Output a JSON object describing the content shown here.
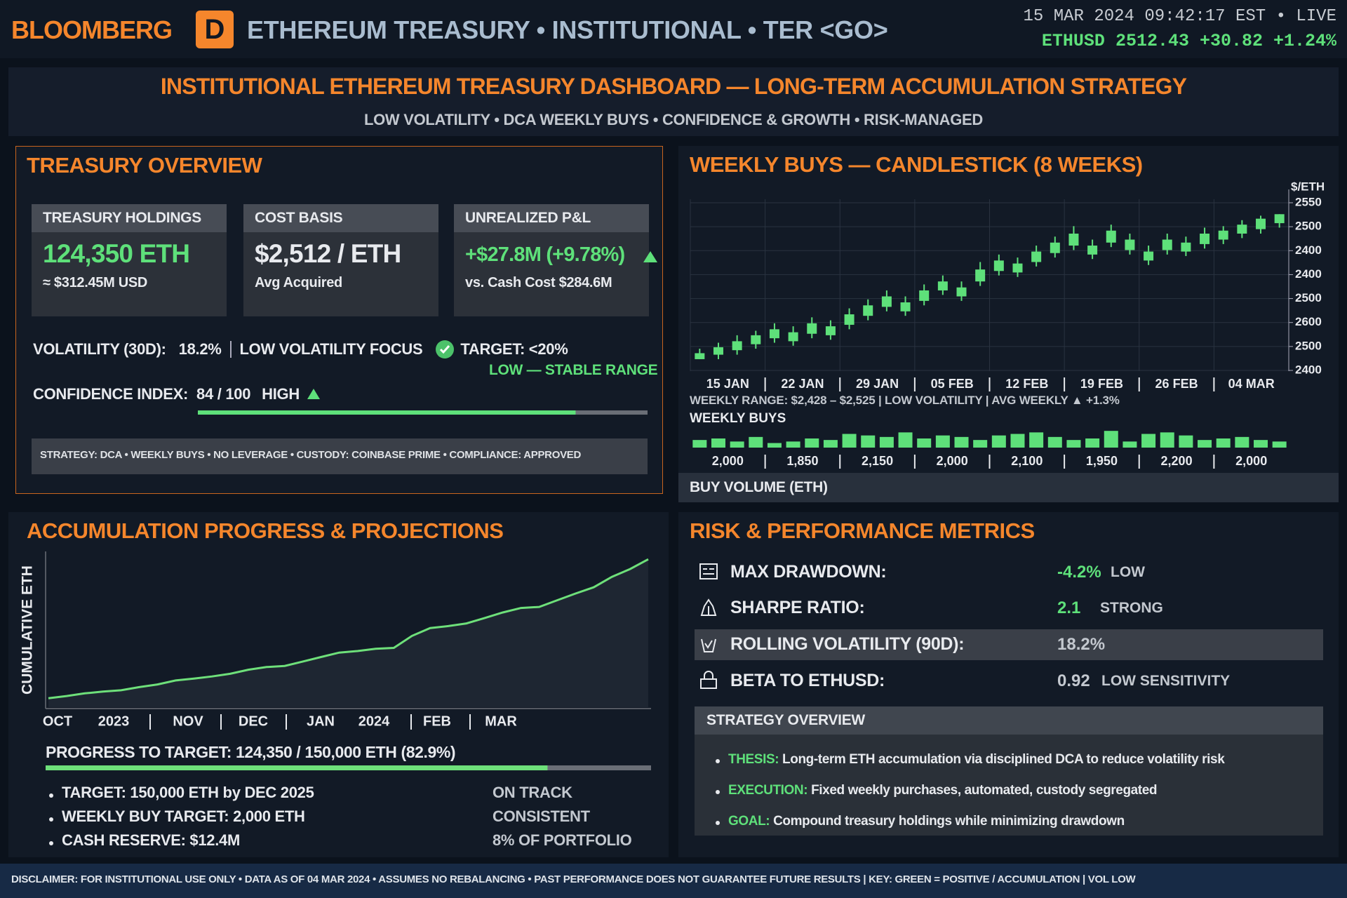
{
  "header": {
    "brand": "BLOOMBERG",
    "logo": "D",
    "title": "ETHEREUM TREASURY • INSTITUTIONAL • TER <GO>",
    "timestamp": "15 MAR 2024 09:42:17 EST • LIVE",
    "ticker": "ETHUSD 2512.43 +30.82 +1.24%"
  },
  "banner": {
    "title": "INSTITUTIONAL ETHEREUM TREASURY DASHBOARD — LONG-TERM ACCUMULATION STRATEGY",
    "subtitle": "LOW VOLATILITY • DCA WEEKLY BUYS • CONFIDENCE & GROWTH • RISK-MANAGED"
  },
  "overview": {
    "title": "TREASURY OVERVIEW",
    "cards": [
      {
        "label": "TREASURY HOLDINGS",
        "value": "124,350 ETH",
        "sub": "≈ $312.45M USD"
      },
      {
        "label": "COST BASIS",
        "value": "$2,512 / ETH",
        "sub": "Avg Acquired"
      },
      {
        "label": "UNREALIZED P&L",
        "value": "+$27.8M (+9.78%)",
        "sub": "vs. Cash Cost $284.6M"
      }
    ],
    "volatility_label": "VOLATILITY (30D):",
    "volatility": "18.2%",
    "focus": "LOW VOLATILITY FOCUS",
    "target": "TARGET: <20%",
    "range_note": "LOW — STABLE RANGE",
    "confidence_label": "CONFIDENCE INDEX:",
    "confidence": {
      "value": 84,
      "max": 100,
      "label": "84 / 100"
    },
    "confidence_rating": "HIGH",
    "bar_color": "#5ee07a",
    "strategy_line": "STRATEGY: DCA • WEEKLY BUYS • NO LEVERAGE • CUSTODY: COINBASE PRIME • COMPLIANCE: APPROVED"
  },
  "weekly": {
    "title": "WEEKLY BUYS — CANDLESTICK (8 WEEKS)",
    "chart_data": {
      "type": "candlestick",
      "unit_label": "$/ETH",
      "color": "#5ee07a",
      "y_axis_labels": [
        "2550",
        "2500",
        "2400",
        "2400",
        "2500",
        "2600",
        "2500",
        "2400"
      ],
      "ylim": [
        2420,
        2535
      ],
      "categories": [
        "15 JAN",
        "22 JAN",
        "29 JAN",
        "05 FEB",
        "12 FEB",
        "19 FEB",
        "26 FEB",
        "04 MAR"
      ],
      "open": [
        2428,
        2431,
        2434,
        2438,
        2442,
        2440,
        2445,
        2444,
        2451,
        2457,
        2463,
        2460,
        2467,
        2474,
        2470,
        2480,
        2487,
        2486,
        2493,
        2499,
        2504,
        2498,
        2506,
        2501,
        2494,
        2501,
        2500,
        2505,
        2508,
        2512,
        2515,
        2519
      ],
      "high": [
        2435,
        2439,
        2444,
        2447,
        2452,
        2450,
        2456,
        2454,
        2462,
        2468,
        2474,
        2470,
        2478,
        2484,
        2480,
        2493,
        2498,
        2496,
        2504,
        2510,
        2517,
        2508,
        2518,
        2512,
        2504,
        2512,
        2510,
        2516,
        2517,
        2521,
        2524,
        2525
      ],
      "low": [
        2428,
        2428,
        2431,
        2435,
        2439,
        2437,
        2442,
        2441,
        2448,
        2454,
        2460,
        2457,
        2464,
        2471,
        2467,
        2477,
        2484,
        2483,
        2490,
        2496,
        2501,
        2495,
        2503,
        2498,
        2491,
        2498,
        2497,
        2502,
        2505,
        2509,
        2512,
        2516
      ],
      "close": [
        2432,
        2436,
        2440,
        2444,
        2448,
        2446,
        2452,
        2450,
        2458,
        2464,
        2470,
        2466,
        2474,
        2480,
        2476,
        2488,
        2494,
        2492,
        2500,
        2506,
        2512,
        2504,
        2514,
        2508,
        2500,
        2508,
        2506,
        2512,
        2514,
        2518,
        2522,
        2525
      ],
      "range_note": "WEEKLY RANGE: $2,428 – $2,525 | LOW VOLATILITY | AVG WEEKLY ▲ +1.3%",
      "volume_title": "WEEKLY BUYS",
      "volume_axis_label": "BUY VOLUME (ETH)",
      "volume": [
        1950,
        2000,
        1900,
        2050,
        1850,
        1900,
        2000,
        1950,
        2150,
        2100,
        2050,
        2200,
        2000,
        2100,
        2050,
        1950,
        2100,
        2150,
        2200,
        2050,
        1950,
        2000,
        2250,
        1900,
        2150,
        2200,
        2100,
        1950,
        2000,
        2050,
        1950,
        1900
      ],
      "volume_lim": [
        1700,
        2300
      ],
      "volume_labels": [
        "2,000",
        "1,850",
        "2,150",
        "2,000",
        "2,100",
        "1,950",
        "2,200",
        "2,000"
      ]
    }
  },
  "accumulation": {
    "title": "ACCUMULATION PROGRESS & PROJECTIONS",
    "chart_data": {
      "type": "area",
      "y_label": "CUMULATIVE ETH",
      "color": "#6ee07a",
      "x_labels": [
        "OCT",
        "2023",
        "NOV",
        "DEC",
        "JAN",
        "2024",
        "FEB",
        "MAR"
      ],
      "ylim": [
        58000,
        126000
      ],
      "values": [
        62000,
        63000,
        64200,
        65000,
        65600,
        67000,
        68200,
        70000,
        70800,
        71800,
        73000,
        74800,
        76000,
        76500,
        78500,
        80500,
        82500,
        83200,
        84200,
        84600,
        90000,
        93500,
        94400,
        95600,
        98000,
        100500,
        102500,
        103000,
        106000,
        109000,
        111800,
        116500,
        120000,
        124350
      ]
    },
    "progress_label": "PROGRESS TO TARGET:",
    "progress": {
      "value": 124350,
      "max": 150000,
      "label": "124,350 / 150,000 ETH (82.9%)"
    },
    "targets": [
      {
        "text": "TARGET: 150,000 ETH by DEC 2025",
        "status": "ON TRACK"
      },
      {
        "text": "WEEKLY BUY TARGET: 2,000 ETH",
        "status": "CONSISTENT"
      },
      {
        "text": "CASH RESERVE: $12.4M",
        "status": "8% OF PORTFOLIO"
      }
    ]
  },
  "risk": {
    "title": "RISK & PERFORMANCE METRICS",
    "metrics": [
      {
        "label": "MAX DRAWDOWN:",
        "value": "-4.2%",
        "note": "LOW"
      },
      {
        "label": "SHARPE RATIO:",
        "value": "2.1",
        "note": "STRONG"
      },
      {
        "label": "ROLLING VOLATILITY (90D):",
        "value": "18.2%"
      },
      {
        "label": "BETA TO ETHUSD:",
        "value": "0.92",
        "note": "LOW SENSITIVITY"
      }
    ],
    "strategy_title": "STRATEGY OVERVIEW",
    "strategy_items": [
      {
        "key": "THESIS:",
        "text": "Long-term ETH accumulation via disciplined DCA to reduce volatility risk"
      },
      {
        "key": "EXECUTION:",
        "text": "Fixed weekly purchases, automated, custody segregated"
      },
      {
        "key": "GOAL:",
        "text": "Compound treasury holdings while minimizing drawdown"
      }
    ]
  },
  "footer": {
    "disclaimer": "DISCLAIMER: FOR INSTITUTIONAL USE ONLY • DATA AS OF 04 MAR 2024 • ASSUMES NO REBALANCING • PAST PERFORMANCE DOES NOT GUARANTEE FUTURE RESULTS | KEY: GREEN = POSITIVE / ACCUMULATION | VOL LOW"
  }
}
